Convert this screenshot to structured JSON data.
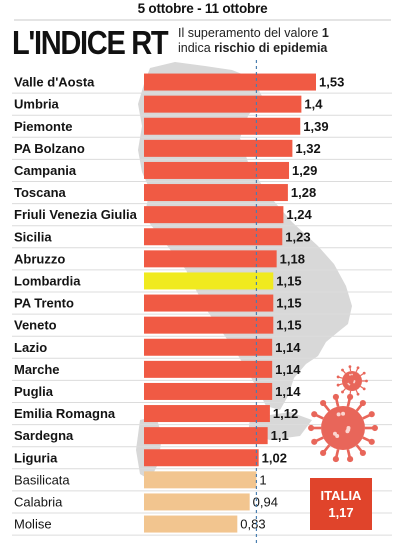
{
  "header": {
    "date_range": "5 ottobre - 11 ottobre",
    "title": "L'INDICE RT",
    "subtitle_lead": "Il superamento del valore ",
    "subtitle_threshold": "1",
    "subtitle_mid": "indica ",
    "subtitle_emphasis": "rischio di epidemia"
  },
  "badge": {
    "label": "ITALIA",
    "value": "1,17"
  },
  "colors": {
    "high": "#f05a44",
    "highlight": "#f0ea1f",
    "below": "#f2c58f",
    "map": "#d8d8d8",
    "virus": "#e8665a",
    "reference_line": "#4a7fb0"
  },
  "icons": [
    "italy-map-silhouette",
    "coronavirus-icon",
    "coronavirus-icon-small"
  ],
  "chart_data": {
    "type": "bar",
    "orientation": "horizontal",
    "xlim": [
      0,
      1.53
    ],
    "reference_value": 1,
    "highlighted_category": "Lombardia",
    "categories": [
      "Valle d'Aosta",
      "Umbria",
      "Piemonte",
      "PA Bolzano",
      "Campania",
      "Toscana",
      "Friuli Venezia Giulia",
      "Sicilia",
      "Abruzzo",
      "Lombardia",
      "PA Trento",
      "Veneto",
      "Lazio",
      "Marche",
      "Puglia",
      "Emilia Romagna",
      "Sardegna",
      "Liguria",
      "Basilicata",
      "Calabria",
      "Molise"
    ],
    "values": [
      1.53,
      1.4,
      1.39,
      1.32,
      1.29,
      1.28,
      1.24,
      1.23,
      1.18,
      1.15,
      1.15,
      1.15,
      1.14,
      1.14,
      1.14,
      1.12,
      1.1,
      1.02,
      1,
      0.94,
      0.83
    ],
    "value_labels": [
      "1,53",
      "1,4",
      "1,39",
      "1,32",
      "1,29",
      "1,28",
      "1,24",
      "1,23",
      "1,18",
      "1,15",
      "1,15",
      "1,15",
      "1,14",
      "1,14",
      "1,14",
      "1,12",
      "1,1",
      "1,02",
      "1",
      "0,94",
      "0,83"
    ]
  }
}
